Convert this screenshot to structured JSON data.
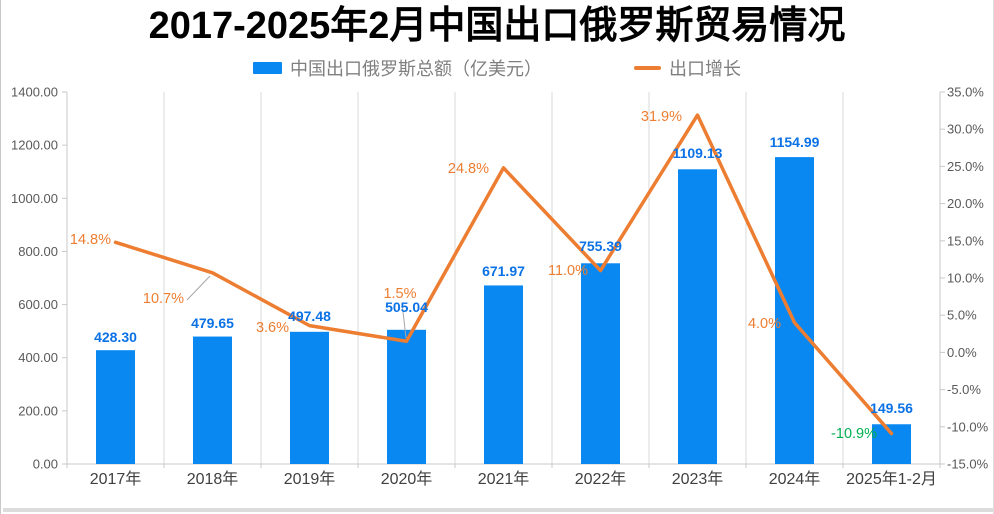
{
  "title": "2017-2025年2月中国出口俄罗斯贸易情况",
  "legend": {
    "items": [
      {
        "label": "中国出口俄罗斯总额（亿美元）",
        "swatch": "bar",
        "color": "#0988f2"
      },
      {
        "label": "出口增长",
        "swatch": "line",
        "color": "#ed7d31"
      }
    ]
  },
  "chart_data": {
    "type": "combo",
    "title": "2017-2025年2月中国出口俄罗斯贸易情况",
    "categories": [
      "2017年",
      "2018年",
      "2019年",
      "2020年",
      "2021年",
      "2022年",
      "2023年",
      "2024年",
      "2025年1-2月"
    ],
    "series": [
      {
        "name": "中国出口俄罗斯总额（亿美元）",
        "type": "bar",
        "axis": "left",
        "color": "#0988f2",
        "values": [
          428.3,
          479.65,
          497.48,
          505.04,
          671.97,
          755.39,
          1109.13,
          1154.99,
          149.56
        ],
        "value_labels": [
          "428.30",
          "479.65",
          "497.48",
          "505.04",
          "671.97",
          "755.39",
          "1109.13",
          "1154.99",
          "149.56"
        ],
        "label_color": "#0a72e6"
      },
      {
        "name": "出口增长",
        "type": "line",
        "axis": "right",
        "color": "#ed7d31",
        "values": [
          14.8,
          10.7,
          3.6,
          1.5,
          24.8,
          11.0,
          31.9,
          4.0,
          -10.9
        ],
        "value_labels": [
          "14.8%",
          "10.7%",
          "3.6%",
          "1.5%",
          "24.8%",
          "11.0%",
          "31.9%",
          "4.0%",
          "-10.9%"
        ],
        "label_colors": [
          "#ed7d31",
          "#ed7d31",
          "#ed7d31",
          "#ed7d31",
          "#ed7d31",
          "#ed7d31",
          "#ed7d31",
          "#ed7d31",
          "#00b050"
        ]
      }
    ],
    "left_axis": {
      "min": 0,
      "max": 1400,
      "step": 200,
      "tick_labels": [
        "0.00",
        "200.00",
        "400.00",
        "600.00",
        "800.00",
        "1000.00",
        "1200.00",
        "1400.00"
      ]
    },
    "right_axis": {
      "min": -15,
      "max": 35,
      "step": 5,
      "tick_labels": [
        "-15.0%",
        "-10.0%",
        "-5.0%",
        "0.0%",
        "5.0%",
        "10.0%",
        "15.0%",
        "20.0%",
        "25.0%",
        "30.0%",
        "35.0%"
      ]
    },
    "grid": "vertical-only",
    "legend_position": "top",
    "tick_color": "#595959",
    "category_label_color": "#404040",
    "gridline_color": "#d9d9d9",
    "axis_line_color": "#c9c9c9",
    "leader_line_color": "#a6a6a6"
  }
}
